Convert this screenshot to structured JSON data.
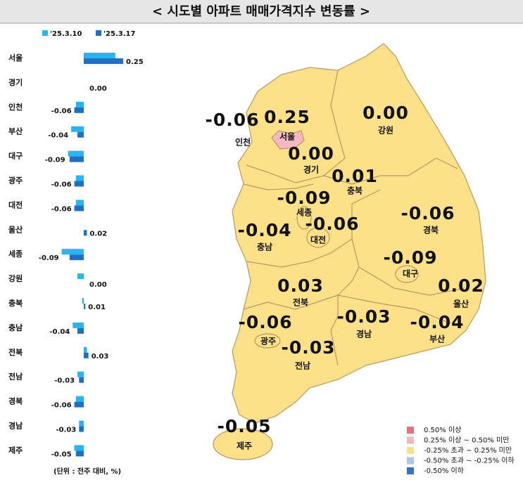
{
  "title": "< 시도별 아파트 매매가격지수 변동률 >",
  "chart_data": {
    "type": "bar",
    "orientation": "horizontal",
    "categories": [
      "서울",
      "경기",
      "인천",
      "부산",
      "대구",
      "광주",
      "대전",
      "울산",
      "세종",
      "강원",
      "충북",
      "충남",
      "전북",
      "전남",
      "경북",
      "경남",
      "제주"
    ],
    "series": [
      {
        "name": "'25.3.10",
        "color": "#29b5f0",
        "values": [
          0.2,
          0.0,
          -0.05,
          -0.08,
          -0.1,
          -0.05,
          -0.05,
          0.0,
          -0.14,
          -0.04,
          -0.01,
          -0.07,
          0.02,
          -0.04,
          -0.05,
          -0.03,
          -0.06
        ]
      },
      {
        "name": "'25.3.17",
        "color": "#1f6fc4",
        "values": [
          0.25,
          0.0,
          -0.06,
          -0.04,
          -0.09,
          -0.06,
          -0.06,
          0.02,
          -0.09,
          0.0,
          0.01,
          -0.04,
          0.03,
          -0.03,
          -0.06,
          -0.03,
          -0.05
        ],
        "value_labels": [
          "0.25",
          "0.00",
          "-0.06",
          "-0.04",
          "-0.09",
          "-0.06",
          "-0.06",
          "0.02",
          "-0.09",
          "0.00",
          "0.01",
          "-0.04",
          "0.03",
          "-0.03",
          "-0.06",
          "-0.03",
          "-0.05"
        ]
      }
    ],
    "unit_note": "(단위 : 전주 대비, %)"
  },
  "map_legend": [
    {
      "label": "0.50% 이상",
      "color": "#e8707a"
    },
    {
      "label": "0.25% 이상 ~ 0.50% 미만",
      "color": "#f4b8c0"
    },
    {
      "label": "-0.25% 초과 ~ 0.25% 미만",
      "color": "#fde08a"
    },
    {
      "label": "-0.50% 초과 ~ -0.25% 이하",
      "color": "#b4c3e6"
    },
    {
      "label": "-0.50% 이하",
      "color": "#3f6fc4"
    }
  ]
}
